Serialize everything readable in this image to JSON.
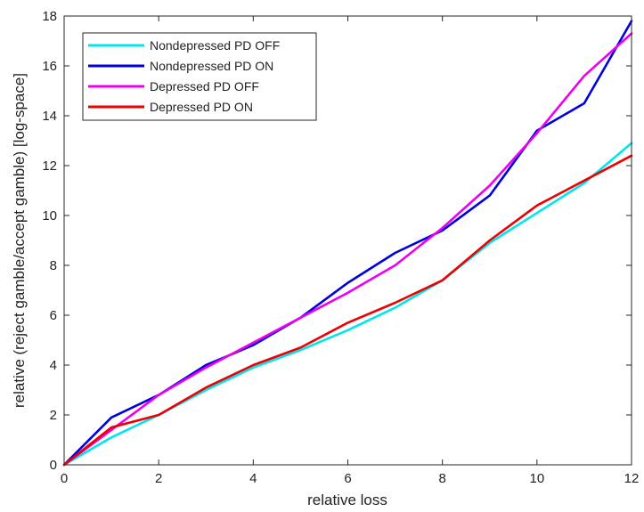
{
  "chart_data": {
    "type": "line",
    "title": "",
    "xlabel": "relative loss",
    "ylabel": "relative (reject gamble/accept gamble) [log-space]",
    "xlim": [
      0,
      12
    ],
    "ylim": [
      0,
      18
    ],
    "xticks": [
      0,
      2,
      4,
      6,
      8,
      10,
      12
    ],
    "yticks": [
      0,
      2,
      4,
      6,
      8,
      10,
      12,
      14,
      16,
      18
    ],
    "grid": false,
    "legend_position": "top-left",
    "x": [
      0,
      1,
      2,
      3,
      4,
      5,
      6,
      7,
      8,
      9,
      10,
      11,
      12
    ],
    "series": [
      {
        "name": "Nondepressed PD OFF",
        "color": "#00e5ee",
        "values": [
          0,
          1.1,
          2.0,
          3.0,
          3.9,
          4.6,
          5.4,
          6.3,
          7.4,
          8.9,
          10.1,
          11.3,
          12.9
        ]
      },
      {
        "name": "Nondepressed PD ON",
        "color": "#0000dd",
        "values": [
          0,
          1.9,
          2.8,
          4.0,
          4.8,
          5.9,
          7.3,
          8.5,
          9.4,
          10.8,
          13.4,
          14.5,
          17.8
        ]
      },
      {
        "name": "Depressed PD OFF",
        "color": "#ee00ee",
        "values": [
          0,
          1.4,
          2.8,
          3.9,
          4.9,
          5.9,
          6.9,
          8.0,
          9.5,
          11.2,
          13.3,
          15.6,
          17.3
        ]
      },
      {
        "name": "Depressed PD ON",
        "color": "#ee0000",
        "values": [
          0,
          1.5,
          2.0,
          3.1,
          4.0,
          4.7,
          5.7,
          6.5,
          7.4,
          9.0,
          10.4,
          11.4,
          12.4
        ]
      }
    ]
  }
}
